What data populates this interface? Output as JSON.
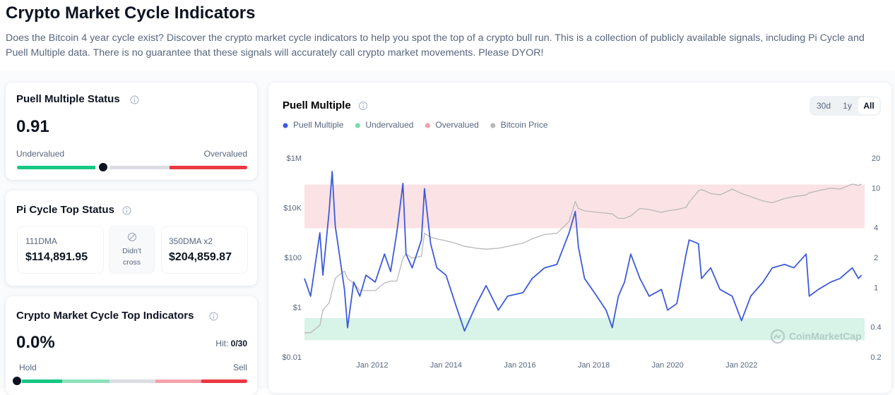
{
  "header": {
    "title": "Crypto Market Cycle Indicators",
    "description": "Does the Bitcoin 4 year cycle exist? Discover the crypto market cycle indicators to help you spot the top of a crypto bull run. This is a collection of publicly available signals, including Pi Cycle and Puell Multiple data. There is no guarantee that these signals will accurately call crypto market movements. Please DYOR!"
  },
  "puell_card": {
    "title": "Puell Multiple Status",
    "value": "0.91",
    "low_label": "Undervalued",
    "high_label": "Overvalued"
  },
  "pi_cycle_card": {
    "title": "Pi Cycle Top Status",
    "left": {
      "label": "111DMA",
      "value": "$114,891.95"
    },
    "status": "Didn't cross",
    "right": {
      "label": "350DMA x2",
      "value": "$204,859.87"
    }
  },
  "top_indicators_card": {
    "title": "Crypto Market Cycle Top Indicators",
    "value": "0.0%",
    "hit_label": "Hit:",
    "hit_value": "0/30",
    "low_label": "Hold",
    "high_label": "Sell"
  },
  "chart_controls": [
    "30d",
    "1y",
    "All"
  ],
  "watermark": "CoinMarketCap",
  "chart_data": {
    "type": "line",
    "title": "Puell Multiple",
    "log_scale": true,
    "x": [
      "2010-03",
      "2010-05",
      "2010-08",
      "2010-09",
      "2010-11",
      "2010-12",
      "2011-01",
      "2011-02",
      "2011-04",
      "2011-05",
      "2011-07",
      "2011-09",
      "2011-11",
      "2012-02",
      "2012-05",
      "2012-07",
      "2012-09",
      "2012-11",
      "2012-12",
      "2013-02",
      "2013-05",
      "2013-06",
      "2013-08",
      "2013-10",
      "2014-01",
      "2014-04",
      "2014-07",
      "2014-11",
      "2015-02",
      "2015-06",
      "2015-09",
      "2016-02",
      "2016-05",
      "2016-09",
      "2017-01",
      "2017-05",
      "2017-07",
      "2017-08",
      "2017-10",
      "2018-02",
      "2018-05",
      "2018-07",
      "2018-09",
      "2018-11",
      "2019-01",
      "2019-04",
      "2019-07",
      "2019-11",
      "2020-01",
      "2020-04",
      "2020-07",
      "2020-08",
      "2020-11",
      "2020-12",
      "2021-03",
      "2021-06",
      "2021-10",
      "2022-01",
      "2022-04",
      "2022-08",
      "2022-11",
      "2023-03",
      "2023-06",
      "2023-10",
      "2023-11",
      "2024-02",
      "2024-06",
      "2024-09",
      "2025-01",
      "2025-03",
      "2025-04"
    ],
    "series": [
      {
        "name": "Puell Multiple",
        "color": "#3d5bd9",
        "axis": "y2",
        "values": [
          1.25,
          0.83,
          3.6,
          1.35,
          5.9,
          14.9,
          4.2,
          2.6,
          0.97,
          0.4,
          1.15,
          0.83,
          1.35,
          1.15,
          2.2,
          1.47,
          3.6,
          11.3,
          2.2,
          1.6,
          3.05,
          10,
          2.8,
          1.6,
          1.35,
          0.7,
          0.37,
          0.7,
          1.06,
          0.6,
          0.83,
          0.9,
          1.25,
          1.6,
          1.73,
          3.6,
          5.9,
          2.6,
          1.25,
          0.83,
          0.6,
          0.4,
          0.83,
          1.15,
          2.2,
          1.25,
          0.83,
          0.97,
          0.6,
          0.7,
          2.2,
          3.05,
          2.8,
          1.25,
          1.6,
          0.97,
          0.83,
          0.47,
          0.83,
          1.15,
          1.6,
          1.73,
          1.6,
          2.2,
          0.83,
          0.97,
          1.15,
          1.25,
          1.6,
          1.25,
          1.35
        ]
      },
      {
        "name": "Bitcoin Price",
        "color": "#b8b8b8",
        "axis": "y",
        "values": [
          0.1,
          0.1,
          0.2,
          0.8,
          1.6,
          5,
          15,
          20,
          30,
          15,
          10,
          5,
          5,
          5,
          10,
          12,
          12,
          100,
          150,
          100,
          120,
          1000,
          700,
          600,
          500,
          400,
          300,
          250,
          230,
          250,
          300,
          400,
          600,
          900,
          1000,
          3000,
          19000,
          10000,
          8000,
          7000,
          6500,
          6000,
          4000,
          4000,
          5000,
          10000,
          9000,
          7000,
          8000,
          9000,
          11000,
          18000,
          50000,
          58000,
          40000,
          35000,
          60000,
          40000,
          30000,
          20000,
          17000,
          25000,
          30000,
          35000,
          42000,
          52000,
          65000,
          60000,
          95000,
          85000,
          95000
        ]
      }
    ],
    "bands": [
      {
        "name": "Undervalued",
        "color": "#7fd8ae",
        "range": [
          0.3,
          0.5
        ]
      },
      {
        "name": "Overvalued",
        "color": "#f2a0a8",
        "range": [
          4,
          11
        ]
      }
    ],
    "xlim": [
      "2010-03",
      "2025-05"
    ],
    "xticks": [
      {
        "value": "2012-01",
        "label": "Jan 2012"
      },
      {
        "value": "2014-01",
        "label": "Jan 2014"
      },
      {
        "value": "2016-01",
        "label": "Jan 2016"
      },
      {
        "value": "2018-01",
        "label": "Jan 2018"
      },
      {
        "value": "2020-01",
        "label": "Jan 2020"
      },
      {
        "value": "2022-01",
        "label": "Jan 2022"
      }
    ],
    "ylim": [
      0.01,
      1000000
    ],
    "yticks": [
      {
        "value": 0.01,
        "label": "$0.01"
      },
      {
        "value": 1,
        "label": "$1"
      },
      {
        "value": 100,
        "label": "$100"
      },
      {
        "value": 10000,
        "label": "$10K"
      },
      {
        "value": 1000000,
        "label": "$1M"
      }
    ],
    "y2lim": [
      0.2,
      20
    ],
    "y2ticks": [
      0.2,
      0.4,
      1,
      2,
      4,
      10,
      20
    ]
  }
}
